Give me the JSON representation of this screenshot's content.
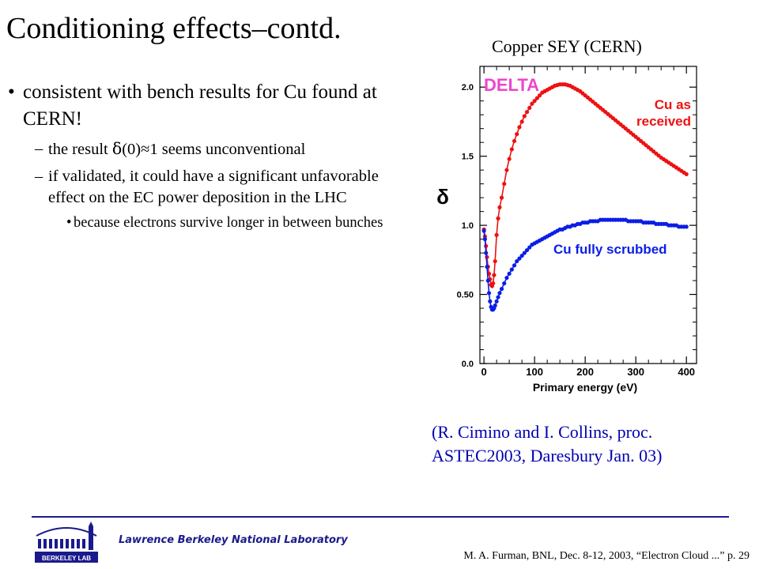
{
  "slide": {
    "title": "Conditioning effects–contd.",
    "plot_caption": "Copper SEY (CERN)"
  },
  "bullets": {
    "main": {
      "mark": "•",
      "text": "consistent  with bench results for Cu found at CERN!"
    },
    "sub": [
      {
        "mark": "–",
        "pre": "the result ",
        "sym": "δ",
        "post": "(0)≈1 seems unconventional"
      },
      {
        "mark": "–",
        "pre": "if validated, it could have a significant unfavorable effect on the EC power deposition in the LHC",
        "sym": "",
        "post": ""
      }
    ],
    "subsub": [
      {
        "mark": "•",
        "text": "because electrons survive longer in between bunches"
      }
    ]
  },
  "citation": {
    "line1": "(R. Cimino and I. Collins, proc.",
    "line2": "ASTEC2003, Daresbury Jan. 03)"
  },
  "footer": {
    "lab_name": "Lawrence Berkeley National Laboratory",
    "credit": "M. A. Furman, BNL, Dec. 8-12, 2003, “Electron Cloud ...”  p. 29",
    "logo_text": "BERKELEY LAB"
  },
  "chart_data": {
    "type": "scatter",
    "title": "DELTA",
    "xlabel": "Primary energy (eV)",
    "ylabel": "δ",
    "xlim": [
      -8,
      420
    ],
    "ylim": [
      0,
      2.15
    ],
    "xticks": [
      0,
      100,
      200,
      300,
      400
    ],
    "xtick_labels": [
      "0",
      "100",
      "200",
      "300",
      "400"
    ],
    "yticks": [
      0,
      0.5,
      1.0,
      1.5,
      2.0
    ],
    "ytick_labels": [
      "0.0",
      "0.50",
      "1.0",
      "1.5",
      "2.0"
    ],
    "grid": false,
    "series": [
      {
        "name": "Cu as received",
        "color": "#ee1111",
        "x": [
          0,
          2,
          4,
          6,
          8,
          10,
          12,
          14,
          16,
          18,
          20,
          22,
          25,
          28,
          31,
          35,
          40,
          45,
          50,
          55,
          60,
          65,
          70,
          75,
          80,
          85,
          90,
          95,
          100,
          105,
          110,
          115,
          120,
          125,
          130,
          135,
          140,
          145,
          150,
          155,
          160,
          165,
          170,
          175,
          180,
          185,
          190,
          195,
          200,
          205,
          210,
          215,
          220,
          225,
          230,
          235,
          240,
          245,
          250,
          255,
          260,
          265,
          270,
          275,
          280,
          285,
          290,
          295,
          300,
          305,
          310,
          315,
          320,
          325,
          330,
          335,
          340,
          345,
          350,
          355,
          360,
          365,
          370,
          375,
          380,
          385,
          390,
          395,
          400
        ],
        "y": [
          0.97,
          0.92,
          0.85,
          0.77,
          0.7,
          0.65,
          0.61,
          0.57,
          0.56,
          0.58,
          0.64,
          0.74,
          0.93,
          1.05,
          1.13,
          1.2,
          1.3,
          1.4,
          1.48,
          1.55,
          1.61,
          1.66,
          1.71,
          1.75,
          1.79,
          1.82,
          1.85,
          1.88,
          1.9,
          1.92,
          1.94,
          1.96,
          1.97,
          1.98,
          1.99,
          2.0,
          2.01,
          2.015,
          2.02,
          2.02,
          2.02,
          2.015,
          2.01,
          2.0,
          1.99,
          1.98,
          1.97,
          1.955,
          1.94,
          1.925,
          1.91,
          1.895,
          1.88,
          1.865,
          1.85,
          1.835,
          1.82,
          1.805,
          1.79,
          1.775,
          1.76,
          1.745,
          1.73,
          1.715,
          1.7,
          1.685,
          1.67,
          1.655,
          1.64,
          1.625,
          1.61,
          1.595,
          1.58,
          1.565,
          1.55,
          1.535,
          1.52,
          1.505,
          1.49,
          1.478,
          1.466,
          1.454,
          1.442,
          1.43,
          1.418,
          1.406,
          1.394,
          1.382,
          1.37
        ]
      },
      {
        "name": "Cu fully scrubbed",
        "color": "#0a1ee6",
        "x": [
          0,
          2,
          4,
          6,
          8,
          10,
          12,
          14,
          16,
          18,
          20,
          22,
          25,
          28,
          31,
          35,
          40,
          45,
          50,
          55,
          60,
          65,
          70,
          75,
          80,
          85,
          90,
          95,
          100,
          105,
          110,
          115,
          120,
          125,
          130,
          135,
          140,
          145,
          150,
          155,
          160,
          165,
          170,
          175,
          180,
          185,
          190,
          195,
          200,
          205,
          210,
          215,
          220,
          225,
          230,
          235,
          240,
          245,
          250,
          255,
          260,
          265,
          270,
          275,
          280,
          285,
          290,
          295,
          300,
          305,
          310,
          315,
          320,
          325,
          330,
          335,
          340,
          345,
          350,
          355,
          360,
          365,
          370,
          375,
          380,
          385,
          390,
          395,
          400
        ],
        "y": [
          0.96,
          0.9,
          0.8,
          0.7,
          0.6,
          0.51,
          0.45,
          0.41,
          0.39,
          0.39,
          0.4,
          0.42,
          0.45,
          0.48,
          0.51,
          0.54,
          0.58,
          0.62,
          0.65,
          0.68,
          0.71,
          0.74,
          0.76,
          0.78,
          0.8,
          0.82,
          0.84,
          0.86,
          0.87,
          0.88,
          0.89,
          0.9,
          0.91,
          0.92,
          0.93,
          0.94,
          0.95,
          0.96,
          0.97,
          0.97,
          0.98,
          0.99,
          0.99,
          1.0,
          1.0,
          1.01,
          1.01,
          1.02,
          1.02,
          1.02,
          1.03,
          1.03,
          1.03,
          1.03,
          1.04,
          1.04,
          1.04,
          1.04,
          1.04,
          1.04,
          1.04,
          1.04,
          1.04,
          1.04,
          1.04,
          1.03,
          1.03,
          1.03,
          1.03,
          1.03,
          1.03,
          1.02,
          1.02,
          1.02,
          1.02,
          1.02,
          1.01,
          1.01,
          1.01,
          1.01,
          1.01,
          1.0,
          1.0,
          1.0,
          1.0,
          0.99,
          0.99,
          0.99,
          0.99
        ]
      }
    ]
  }
}
